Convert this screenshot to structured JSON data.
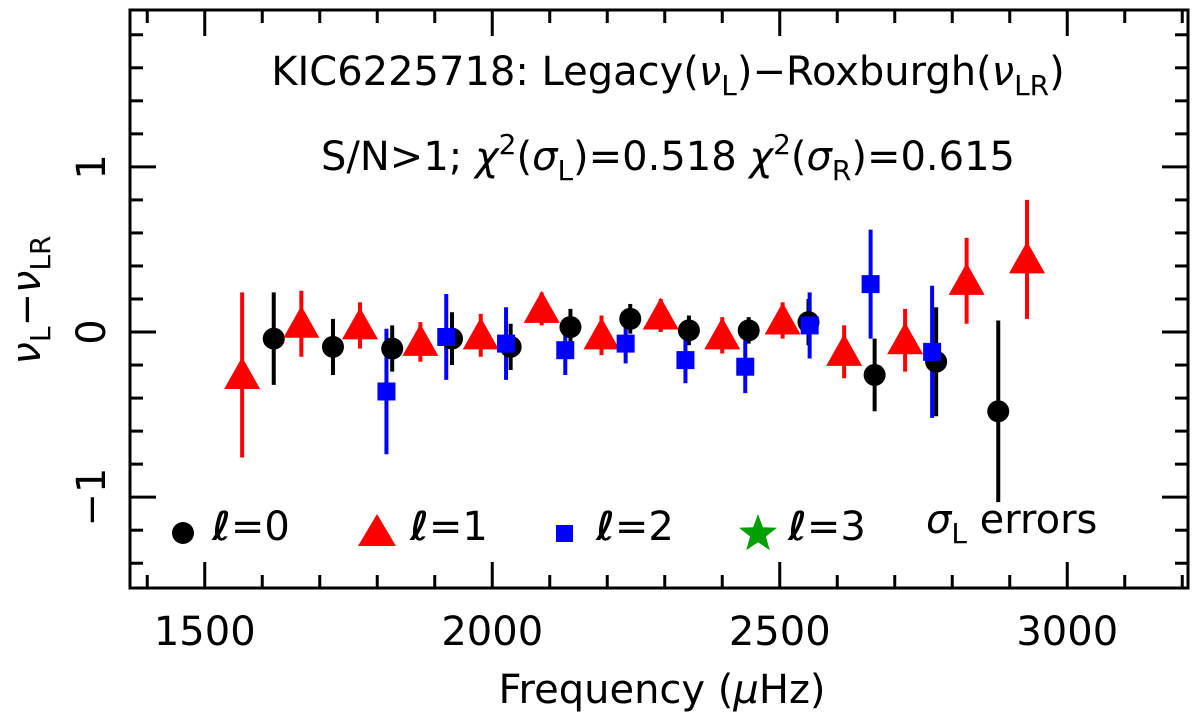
{
  "chart_data": {
    "type": "scatter",
    "title_line1": {
      "prefix": "KIC6225718:  Legacy(",
      "nu1": "ν",
      "sub1": "L",
      "mid": ")−Roxburgh(",
      "nu2": "ν",
      "sub2": "LR",
      "suffix": ")"
    },
    "title_line2": {
      "p1": "S/N>1;  ",
      "chi1": "χ",
      "sup1": "2",
      "open1": "(",
      "sig1": "σ",
      "sub1": "L",
      "val1": ")=0.518",
      "chi2": "χ",
      "sup2": "2",
      "open2": "(",
      "sig2": "σ",
      "sub2": "R",
      "val2": ")=0.615"
    },
    "xlabel": {
      "prefix": "Frequency (",
      "mu": "μ",
      "suffix": "Hz)"
    },
    "ylabel": {
      "nu1": "ν",
      "sub1": "L",
      "minus": "−",
      "nu2": "ν",
      "sub2": "LR"
    },
    "xlim": [
      1370,
      3210
    ],
    "ylim": [
      -1.55,
      1.95
    ],
    "x_ticks": [
      1500,
      2000,
      2500,
      3000
    ],
    "x_tick_labels": [
      "1500",
      "2000",
      "2500",
      "3000"
    ],
    "y_ticks": [
      -1,
      0,
      1
    ],
    "y_tick_labels": [
      "−1",
      "0",
      "1"
    ],
    "legend": {
      "items": [
        {
          "letter": "ℓ",
          "label": "=0",
          "color": "#000000",
          "marker": "circle"
        },
        {
          "letter": "ℓ",
          "label": "=1",
          "color": "#ff0000",
          "marker": "triangle"
        },
        {
          "letter": "ℓ",
          "label": "=2",
          "color": "#0000ff",
          "marker": "square"
        },
        {
          "letter": "ℓ",
          "label": "=3",
          "color": "#00a000",
          "marker": "star"
        }
      ],
      "note_sigma": "σ",
      "note_sub": "L",
      "note_text": " errors"
    },
    "series": [
      {
        "name": "l=0",
        "marker": "circle",
        "color": "#000000",
        "x": [
          1620,
          1723,
          1826,
          1930,
          2032,
          2136,
          2240,
          2342,
          2446,
          2550,
          2665,
          2772,
          2880
        ],
        "y": [
          -0.04,
          -0.09,
          -0.1,
          -0.04,
          -0.09,
          0.03,
          0.08,
          0.01,
          0.01,
          0.06,
          -0.26,
          -0.18,
          -0.48
        ],
        "err": [
          0.28,
          0.17,
          0.14,
          0.16,
          0.14,
          0.11,
          0.09,
          0.09,
          0.08,
          0.14,
          0.22,
          0.33,
          0.55
        ]
      },
      {
        "name": "l=1",
        "marker": "triangle",
        "color": "#ff0000",
        "x": [
          1565,
          1668,
          1770,
          1875,
          1980,
          2086,
          2190,
          2293,
          2400,
          2505,
          2612,
          2718,
          2825,
          2930
        ],
        "y": [
          -0.26,
          0.05,
          0.04,
          -0.06,
          -0.02,
          0.14,
          -0.02,
          0.1,
          -0.02,
          0.07,
          -0.12,
          -0.05,
          0.31,
          0.44
        ],
        "err": [
          0.5,
          0.2,
          0.14,
          0.12,
          0.13,
          0.1,
          0.12,
          0.1,
          0.11,
          0.11,
          0.16,
          0.19,
          0.26,
          0.36
        ]
      },
      {
        "name": "l=2",
        "marker": "square",
        "color": "#0000ff",
        "x": [
          1816,
          1920,
          2024,
          2127,
          2232,
          2336,
          2440,
          2552,
          2658,
          2765
        ],
        "y": [
          -0.36,
          -0.03,
          -0.07,
          -0.11,
          -0.07,
          -0.17,
          -0.21,
          0.04,
          0.29,
          -0.12
        ],
        "err": [
          0.38,
          0.26,
          0.22,
          0.15,
          0.12,
          0.14,
          0.16,
          0.2,
          0.33,
          0.4
        ]
      },
      {
        "name": "l=3",
        "marker": "star",
        "color": "#00a000",
        "x": [],
        "y": [],
        "err": []
      }
    ]
  }
}
